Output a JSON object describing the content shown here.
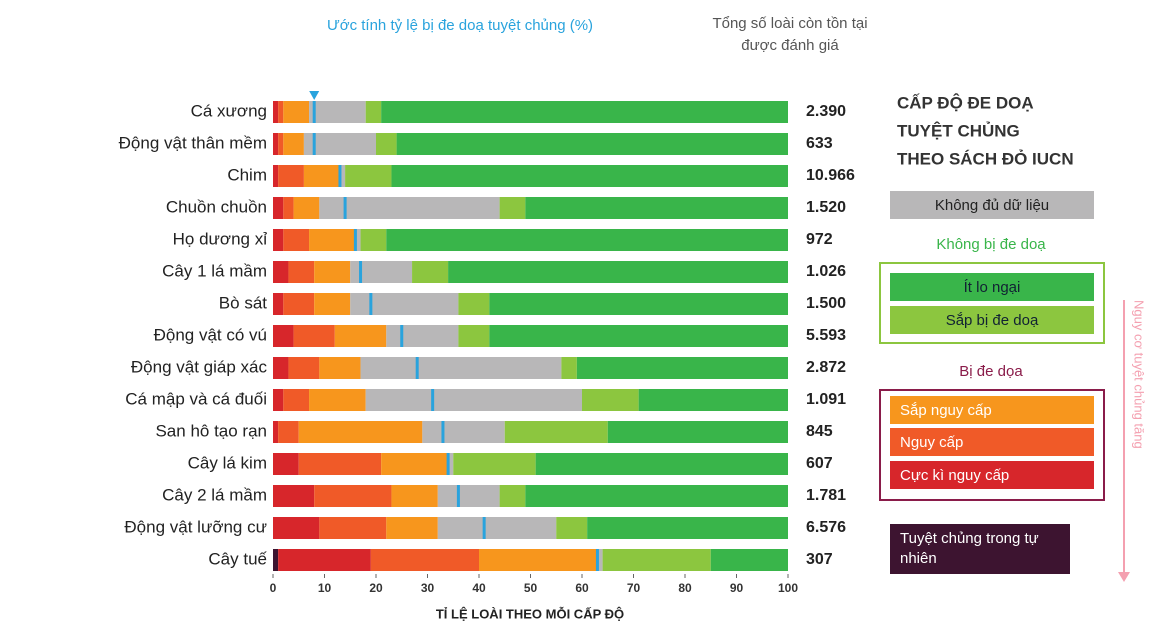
{
  "chart_data": {
    "type": "stacked_barh",
    "header_left": "Ước tính tỷ lệ bị đe doạ tuyệt chủng (%)",
    "header_right": [
      "Tổng số loài còn tồn tại",
      "được đánh giá"
    ],
    "x_label": "TỈ LỆ LOÀI THEO MỖI CẤP ĐỘ",
    "xlim": [
      0,
      100
    ],
    "xticks": [
      0,
      10,
      20,
      30,
      40,
      50,
      60,
      70,
      80,
      90,
      100
    ],
    "categories": [
      "Cá xương",
      "Động vật thân mềm",
      "Chim",
      "Chuồn chuồn",
      "Họ dương xỉ",
      "Cây 1 lá mầm",
      "Bò sát",
      "Động vật có vú",
      "Động vật giáp xác",
      "Cá mập và cá đuối",
      "San hô tạo rạn",
      "Cây lá kim",
      "Cây 2 lá mầm",
      "Động vật lưỡng cư",
      "Cây tuế"
    ],
    "series": [
      {
        "name": "Tuyệt chủng trong tự nhiên",
        "color": "#3d1430",
        "values": [
          0,
          0,
          0,
          0,
          0,
          0,
          0,
          0,
          0,
          0,
          0,
          0,
          0,
          0,
          1
        ]
      },
      {
        "name": "Cực kì nguy cấp",
        "color": "#d7262b",
        "values": [
          1,
          1,
          1,
          2,
          2,
          3,
          2,
          4,
          3,
          2,
          1,
          5,
          8,
          9,
          18
        ]
      },
      {
        "name": "Nguy cấp",
        "color": "#f05a28",
        "values": [
          1,
          1,
          5,
          2,
          5,
          5,
          6,
          8,
          6,
          5,
          4,
          16,
          15,
          13,
          21
        ]
      },
      {
        "name": "Sắp nguy cấp",
        "color": "#f7961d",
        "values": [
          5,
          4,
          7,
          5,
          9,
          7,
          7,
          10,
          8,
          11,
          24,
          13,
          9,
          10,
          23
        ]
      },
      {
        "name": "Không đủ dữ liệu",
        "color": "#b8b7b8",
        "values": [
          11,
          14,
          1,
          35,
          1,
          12,
          21,
          14,
          39,
          42,
          16,
          1,
          12,
          23,
          1
        ]
      },
      {
        "name": "Sắp bị đe doạ",
        "color": "#8cc63f",
        "values": [
          3,
          4,
          9,
          5,
          5,
          7,
          6,
          6,
          3,
          11,
          20,
          16,
          5,
          6,
          21
        ]
      },
      {
        "name": "Ít lo ngại",
        "color": "#39b54a",
        "values": [
          79,
          76,
          77,
          51,
          78,
          66,
          58,
          58,
          41,
          29,
          35,
          49,
          51,
          39,
          15
        ]
      }
    ],
    "threat_estimate": {
      "color": "#29a3dd",
      "values": [
        8,
        8,
        13,
        14,
        16,
        17,
        19,
        25,
        28,
        31,
        33,
        34,
        36,
        41,
        63
      ]
    },
    "totals": {
      "values": [
        2390,
        633,
        10966,
        1520,
        972,
        1026,
        1500,
        5593,
        2872,
        1091,
        845,
        607,
        1781,
        6576,
        307
      ],
      "value_labels": [
        "2.390",
        "633",
        "10.966",
        "1.520",
        "972",
        "1.026",
        "1.500",
        "5.593",
        "2.872",
        "1.091",
        "845",
        "607",
        "1.781",
        "6.576",
        "307"
      ]
    },
    "legend_title": [
      "CẤP ĐỘ ĐE DOẠ",
      "TUYỆT CHỦNG",
      "THEO SÁCH ĐỎ IUCN"
    ],
    "legend_groups": [
      "Không bị đe doạ",
      "Bị đe dọa"
    ],
    "arrow_label": "Nguy cơ tuyệt chủng tăng"
  }
}
